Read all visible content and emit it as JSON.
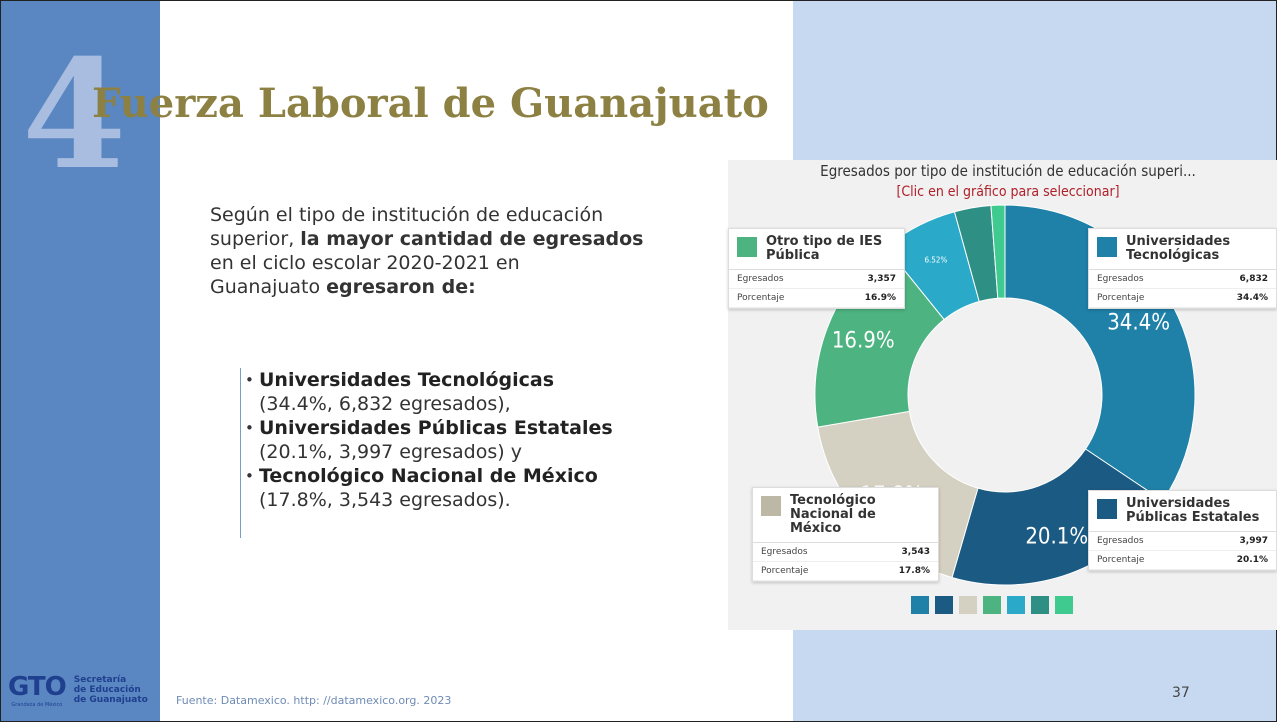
{
  "slide": {
    "big_number": "4",
    "title": "Fuerza Laboral de Guanajuato",
    "intro": [
      [
        {
          "t": "Según el tipo de institución de educación",
          "b": false
        }
      ],
      [
        {
          "t": "superior, ",
          "b": false
        },
        {
          "t": "la mayor cantidad de egresados",
          "b": true
        }
      ],
      [
        {
          "t": "en el ciclo escolar 2020-2021 en",
          "b": false
        }
      ],
      [
        {
          "t": "Guanajuato ",
          "b": false
        },
        {
          "t": "egresaron de:",
          "b": true
        }
      ]
    ],
    "bullets": [
      {
        "name": "Universidades Tecnológicas",
        "detail": "(34.4%, 6,832 egresados),"
      },
      {
        "name": "Universidades Públicas Estatales",
        "detail": "(20.1%, 3,997 egresados) y"
      },
      {
        "name": "Tecnológico Nacional de México",
        "detail": "(17.8%, 3,543 egresados)."
      }
    ],
    "logo": {
      "mark": "GTO",
      "org": [
        "Secretaría",
        "de Educación",
        "de Guanajuato"
      ],
      "tagline": "Grandeza de México"
    },
    "source": "Fuente: Datamexico. http: //datamexico.org. 2023",
    "page": "37"
  },
  "chart_data": {
    "type": "pie",
    "donut": true,
    "title": "Egresados por tipo de institución de educación superi...",
    "subtitle": "[Clic en el gráfico para seleccionar]",
    "values": [
      34.4,
      20.1,
      17.8,
      16.9,
      6.52,
      3.1,
      1.18
    ],
    "value_labels": [
      "34.4%",
      "20.1%",
      "17.8%",
      "16.9%",
      "6.52%",
      null,
      null
    ],
    "colors": [
      "#1f80a8",
      "#1b5a82",
      "#d4d0c2",
      "#4db380",
      "#2aaac8",
      "#2e8f84",
      "#3fcb8f"
    ]
  },
  "cards": [
    {
      "title": [
        "Universidades",
        "Tecnológicas"
      ],
      "rows": [
        [
          "Egresados",
          "6,832"
        ],
        [
          "Porcentaje",
          "34.4%"
        ]
      ]
    },
    {
      "title": [
        "Universidades",
        "Públicas Estatales"
      ],
      "rows": [
        [
          "Egresados",
          "3,997"
        ],
        [
          "Porcentaje",
          "20.1%"
        ]
      ]
    },
    {
      "title": [
        "Tecnológico",
        "Nacional de",
        "México"
      ],
      "rows": [
        [
          "Egresados",
          "3,543"
        ],
        [
          "Porcentaje",
          "17.8%"
        ]
      ]
    },
    {
      "title": [
        "Otro tipo de IES",
        "Pública"
      ],
      "rows": [
        [
          "Egresados",
          "3,357"
        ],
        [
          "Porcentaje",
          "16.9%"
        ]
      ]
    }
  ]
}
